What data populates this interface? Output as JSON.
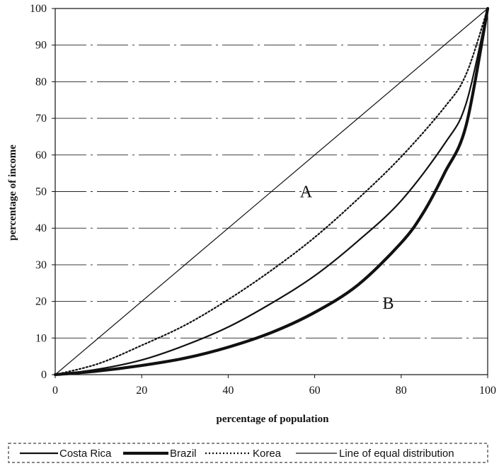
{
  "chart_data": {
    "type": "line",
    "xlabel": "percentage of population",
    "ylabel": "percentage of income",
    "xlim": [
      0,
      100
    ],
    "ylim": [
      0,
      100
    ],
    "x_ticks": [
      "0",
      "20",
      "40",
      "60",
      "80",
      "100"
    ],
    "y_ticks": [
      "0",
      "10",
      "20",
      "30",
      "40",
      "50",
      "60",
      "70",
      "80",
      "90",
      "100"
    ],
    "grid": "horizontal",
    "legend_position": "bottom",
    "annotations": [
      {
        "text": "A",
        "x": 58,
        "y": 50
      },
      {
        "text": "B",
        "x": 77,
        "y": 19.5
      }
    ],
    "series": [
      {
        "name": "Costa Rica",
        "color": "#111111",
        "style": "solid-medium",
        "x": [
          0,
          10,
          20,
          30,
          40,
          50,
          60,
          70,
          80,
          90,
          95,
          100
        ],
        "y": [
          0,
          1.5,
          4,
          8,
          13,
          19.5,
          27,
          36.5,
          47.5,
          63,
          74,
          100
        ]
      },
      {
        "name": "Brazil",
        "color": "#111111",
        "style": "solid-thick",
        "x": [
          0,
          10,
          20,
          30,
          40,
          50,
          60,
          70,
          80,
          85,
          90,
          95,
          100
        ],
        "y": [
          0,
          1,
          2.5,
          4.5,
          7.5,
          11.5,
          17,
          24.5,
          36,
          44,
          55,
          68,
          100
        ]
      },
      {
        "name": "Korea",
        "color": "#111111",
        "style": "dotted",
        "x": [
          0,
          10,
          20,
          30,
          40,
          50,
          60,
          70,
          80,
          90,
          95,
          100
        ],
        "y": [
          0,
          3,
          8,
          13.5,
          20.5,
          28.5,
          37.5,
          48,
          59.5,
          73,
          82,
          100
        ]
      },
      {
        "name": "Line of equal distribution",
        "color": "#111111",
        "style": "solid-thin",
        "x": [
          0,
          100
        ],
        "y": [
          0,
          100
        ]
      }
    ]
  }
}
